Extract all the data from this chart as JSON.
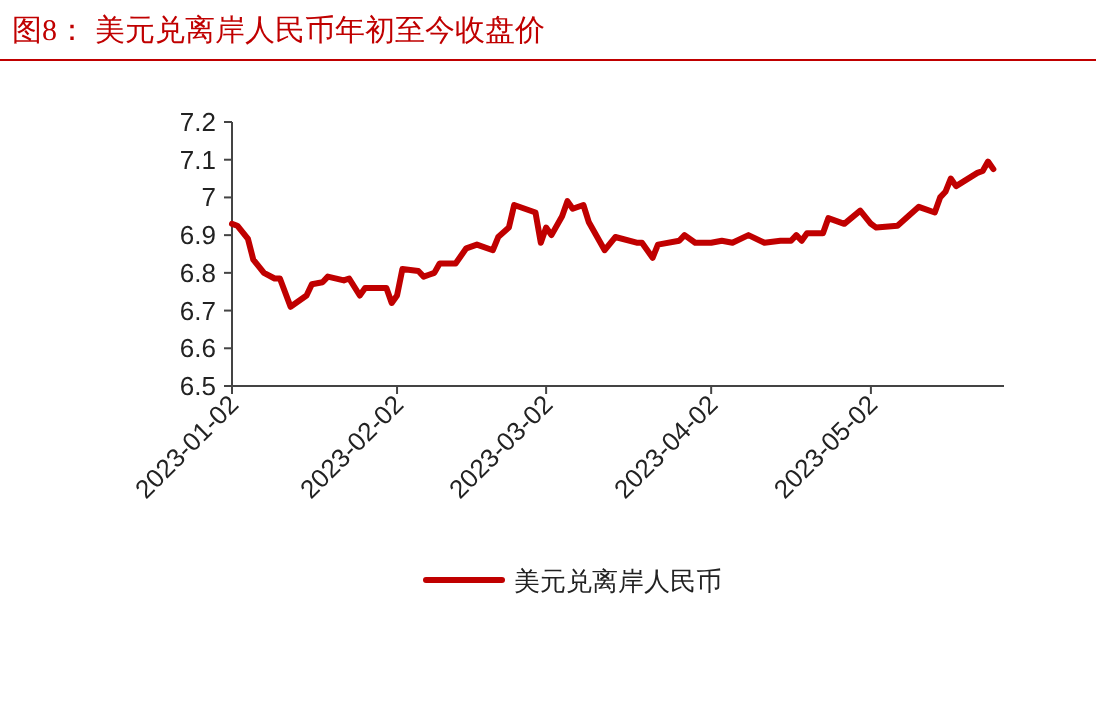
{
  "chart_data": {
    "type": "line",
    "title": "图8：  美元兑离岸人民币年初至今收盘价",
    "x": [
      "2023-01-02",
      "2023-01-03",
      "2023-01-05",
      "2023-01-06",
      "2023-01-08",
      "2023-01-10",
      "2023-01-11",
      "2023-01-13",
      "2023-01-16",
      "2023-01-17",
      "2023-01-19",
      "2023-01-20",
      "2023-01-23",
      "2023-01-24",
      "2023-01-26",
      "2023-01-27",
      "2023-01-31",
      "2023-02-01",
      "2023-02-02",
      "2023-02-03",
      "2023-02-06",
      "2023-02-07",
      "2023-02-08",
      "2023-02-09",
      "2023-02-10",
      "2023-02-13",
      "2023-02-15",
      "2023-02-17",
      "2023-02-20",
      "2023-02-21",
      "2023-02-23",
      "2023-02-24",
      "2023-02-28",
      "2023-03-01",
      "2023-03-02",
      "2023-03-03",
      "2023-03-05",
      "2023-03-06",
      "2023-03-07",
      "2023-03-09",
      "2023-03-10",
      "2023-03-13",
      "2023-03-15",
      "2023-03-19",
      "2023-03-20",
      "2023-03-22",
      "2023-03-23",
      "2023-03-27",
      "2023-03-28",
      "2023-03-30",
      "2023-04-02",
      "2023-04-04",
      "2023-04-06",
      "2023-04-09",
      "2023-04-12",
      "2023-04-15",
      "2023-04-17",
      "2023-04-18",
      "2023-04-19",
      "2023-04-20",
      "2023-04-23",
      "2023-04-24",
      "2023-04-27",
      "2023-04-30",
      "2023-05-02",
      "2023-05-03",
      "2023-05-07",
      "2023-05-11",
      "2023-05-14",
      "2023-05-15",
      "2023-05-16",
      "2023-05-17",
      "2023-05-18",
      "2023-05-22",
      "2023-05-23",
      "2023-05-24",
      "2023-05-25"
    ],
    "series": [
      {
        "name": "美元兑离岸人民币",
        "color": "#c00000",
        "values": [
          6.93,
          6.925,
          6.89,
          6.835,
          6.8,
          6.785,
          6.785,
          6.71,
          6.74,
          6.77,
          6.775,
          6.79,
          6.78,
          6.785,
          6.74,
          6.76,
          6.76,
          6.72,
          6.74,
          6.81,
          6.805,
          6.79,
          6.795,
          6.8,
          6.825,
          6.825,
          6.865,
          6.875,
          6.86,
          6.895,
          6.92,
          6.98,
          6.96,
          6.88,
          6.92,
          6.9,
          6.95,
          6.99,
          6.97,
          6.98,
          6.935,
          6.86,
          6.895,
          6.88,
          6.88,
          6.84,
          6.875,
          6.885,
          6.9,
          6.88,
          6.88,
          6.885,
          6.88,
          6.9,
          6.88,
          6.885,
          6.885,
          6.9,
          6.885,
          6.905,
          6.905,
          6.945,
          6.93,
          6.965,
          6.93,
          6.92,
          6.925,
          6.975,
          6.96,
          7.0,
          7.015,
          7.05,
          7.03,
          7.065,
          7.07,
          7.095,
          7.075
        ]
      }
    ],
    "xlim": [
      "2023-01-02",
      "2023-05-27"
    ],
    "xticks": [
      {
        "value": "2023-01-02",
        "label": "2023-01-02"
      },
      {
        "value": "2023-02-02",
        "label": "2023-02-02"
      },
      {
        "value": "2023-03-02",
        "label": "2023-03-02"
      },
      {
        "value": "2023-04-02",
        "label": "2023-04-02"
      },
      {
        "value": "2023-05-02",
        "label": "2023-05-02"
      }
    ],
    "ylim": [
      6.5,
      7.2
    ],
    "yticks": [
      6.5,
      6.6,
      6.7,
      6.8,
      6.9,
      7,
      7.1,
      7.2
    ],
    "grid": false,
    "legend": "bottom",
    "line_style": "solid"
  }
}
